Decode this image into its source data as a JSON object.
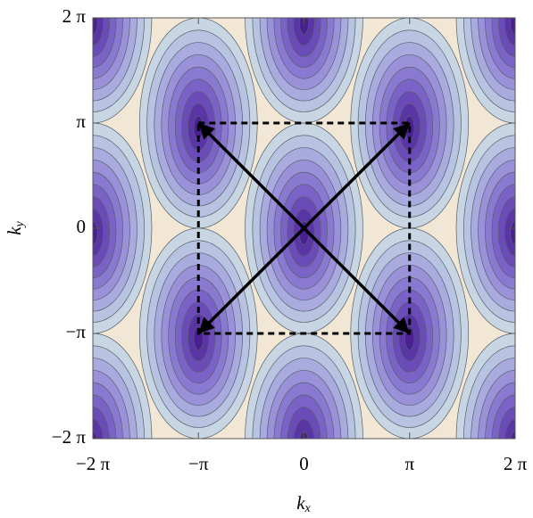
{
  "chart_data": {
    "type": "contour",
    "xlabel": [
      "k",
      "x"
    ],
    "ylabel": [
      "k",
      "y"
    ],
    "xlim": [
      -6.2832,
      6.2832
    ],
    "ylim": [
      -6.2832,
      6.2832
    ],
    "xticks": [
      {
        "value": -6.2832,
        "label": "−2 π"
      },
      {
        "value": -3.1416,
        "label": "−π"
      },
      0,
      {
        "value": 3.1416,
        "label": "π"
      },
      {
        "value": 6.2832,
        "label": "2 π"
      }
    ],
    "yticks": [
      {
        "value": -6.2832,
        "label": "−2 π"
      },
      {
        "value": -3.1416,
        "label": "−π"
      },
      0,
      {
        "value": 3.1416,
        "label": "π"
      },
      {
        "value": 6.2832,
        "label": "2 π"
      }
    ],
    "background": "#f2e7d4",
    "colors": [
      "#c8d5e2",
      "#b8c3e1",
      "#a9aade",
      "#9a91d9",
      "#8a79d0",
      "#7a62c6",
      "#6a4bb8",
      "#5a35a6",
      "#4a2090"
    ],
    "centers": {
      "x": [
        0,
        -3.1416,
        3.1416,
        -3.1416,
        3.1416,
        -6.2832,
        6.2832,
        0,
        0,
        -6.2832,
        6.2832,
        -6.2832,
        6.2832
      ],
      "y": [
        0,
        3.1416,
        3.1416,
        -3.1416,
        -3.1416,
        0,
        0,
        6.2832,
        -6.2832,
        6.2832,
        6.2832,
        -6.2832,
        -6.2832
      ]
    },
    "box": {
      "x": [
        -3.1416,
        3.1416,
        3.1416,
        -3.1416,
        -3.1416
      ],
      "y": [
        3.1416,
        3.1416,
        -3.1416,
        -3.1416,
        3.1416
      ]
    },
    "arrows": [
      {
        "x": [
          -3.1416,
          3.1416
        ],
        "y": [
          3.1416,
          -3.1416
        ]
      },
      {
        "x": [
          -3.1416,
          3.1416
        ],
        "y": [
          -3.1416,
          3.1416
        ]
      }
    ]
  }
}
